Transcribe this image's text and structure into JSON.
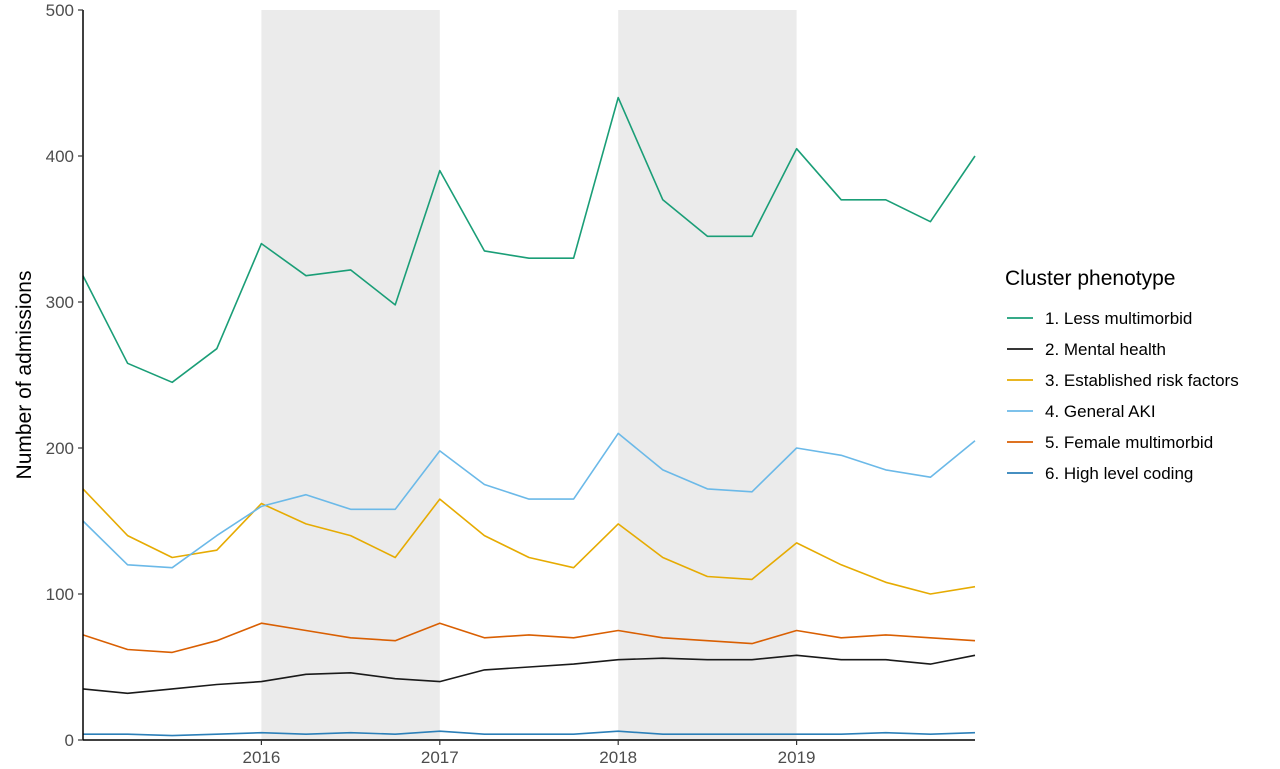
{
  "chart_data": {
    "type": "line",
    "title": "",
    "xlabel": "",
    "ylabel": "Number of admissions",
    "xlim": [
      2015.0,
      2020.0
    ],
    "ylim": [
      0,
      500
    ],
    "x_ticks": [
      2016,
      2017,
      2018,
      2019
    ],
    "x_tick_labels": [
      "2016",
      "2017",
      "2018",
      "2019"
    ],
    "y_ticks": [
      0,
      100,
      200,
      300,
      400,
      500
    ],
    "y_tick_labels": [
      "0",
      "100",
      "200",
      "300",
      "400",
      "500"
    ],
    "shaded_ranges": [
      [
        2016.0,
        2017.0
      ],
      [
        2018.0,
        2019.0
      ]
    ],
    "legend_title": "Cluster phenotype",
    "legend_position": "right",
    "x": [
      2015.0,
      2015.25,
      2015.5,
      2015.75,
      2016.0,
      2016.25,
      2016.5,
      2016.75,
      2017.0,
      2017.25,
      2017.5,
      2017.75,
      2018.0,
      2018.25,
      2018.5,
      2018.75,
      2019.0,
      2019.25,
      2019.5,
      2019.75,
      2020.0
    ],
    "series": [
      {
        "name": "1. Less multimorbid",
        "color": "#1a9e77",
        "values": [
          318,
          258,
          245,
          268,
          340,
          318,
          322,
          298,
          390,
          335,
          330,
          330,
          440,
          370,
          345,
          345,
          405,
          370,
          370,
          355,
          400
        ]
      },
      {
        "name": "2. Mental health",
        "color": "#1a1a1a",
        "values": [
          35,
          32,
          35,
          38,
          40,
          45,
          46,
          42,
          40,
          48,
          50,
          52,
          55,
          56,
          55,
          55,
          58,
          55,
          55,
          52,
          58
        ]
      },
      {
        "name": "3. Established risk factors",
        "color": "#e6ab02",
        "values": [
          172,
          140,
          125,
          130,
          162,
          148,
          140,
          125,
          165,
          140,
          125,
          118,
          148,
          125,
          112,
          110,
          135,
          120,
          108,
          100,
          105
        ]
      },
      {
        "name": "4. General AKI",
        "color": "#6bb9e8",
        "values": [
          150,
          120,
          118,
          140,
          160,
          168,
          158,
          158,
          198,
          175,
          165,
          165,
          210,
          185,
          172,
          170,
          200,
          195,
          185,
          180,
          205
        ]
      },
      {
        "name": "5. Female multimorbid",
        "color": "#d95f02",
        "values": [
          72,
          62,
          60,
          68,
          80,
          75,
          70,
          68,
          80,
          70,
          72,
          70,
          75,
          70,
          68,
          66,
          75,
          70,
          72,
          70,
          68
        ]
      },
      {
        "name": "6. High level coding",
        "color": "#2c7fb8",
        "values": [
          4,
          4,
          3,
          4,
          5,
          4,
          5,
          4,
          6,
          4,
          4,
          4,
          6,
          4,
          4,
          4,
          4,
          4,
          5,
          4,
          5
        ]
      }
    ]
  }
}
